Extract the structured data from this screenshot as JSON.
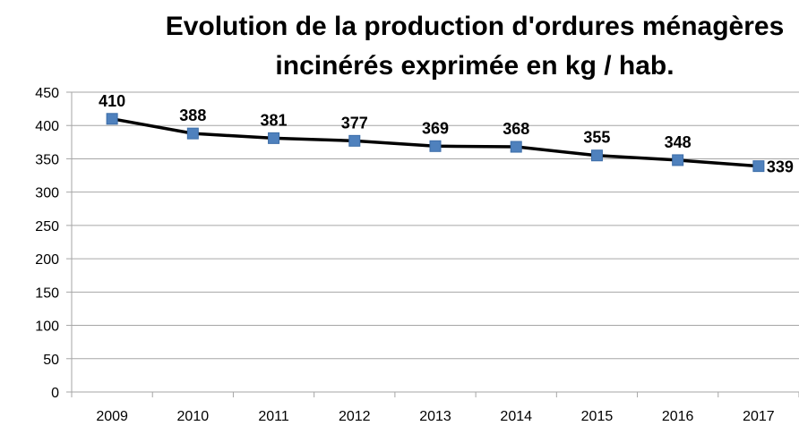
{
  "chart_data": {
    "type": "line",
    "title_line1": "Evolution de la production d'ordures ménagères",
    "title_line2": "incinérés exprimée en kg / hab.",
    "categories": [
      "2009",
      "2010",
      "2011",
      "2012",
      "2013",
      "2014",
      "2015",
      "2016",
      "2017"
    ],
    "series": [
      {
        "values": [
          410,
          388,
          381,
          377,
          369,
          368,
          355,
          348,
          339
        ],
        "color": "#000000",
        "marker_color": "#4F81BD"
      }
    ],
    "data_labels": [
      "410",
      "388",
      "381",
      "377",
      "369",
      "368",
      "355",
      "348",
      "339"
    ],
    "ylim": [
      0,
      450
    ],
    "yticks": [
      0,
      50,
      100,
      150,
      200,
      250,
      300,
      350,
      400,
      450
    ],
    "ytick_labels": [
      "0",
      "50",
      "100",
      "150",
      "200",
      "250",
      "300",
      "350",
      "400",
      "450"
    ],
    "grid": true,
    "gridline_color": "#A6A6A6",
    "legend": false
  }
}
